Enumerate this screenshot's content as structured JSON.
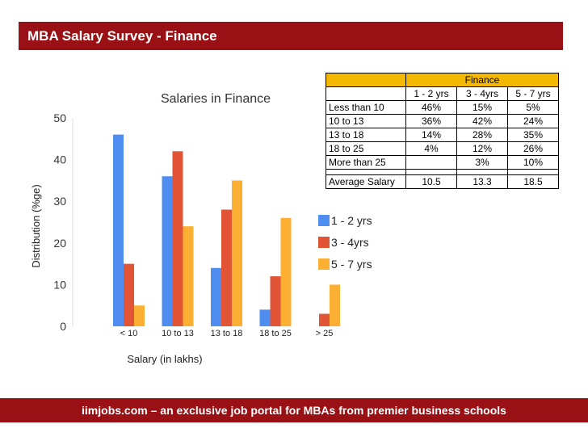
{
  "header": {
    "title": "MBA Salary Survey - Finance"
  },
  "footer": {
    "text": "iimjobs.com – an exclusive job portal for MBAs from premier business schools"
  },
  "chart_data": {
    "type": "bar",
    "title": "Salaries in Finance",
    "xlabel": "Salary (in lakhs)",
    "ylabel": "Distribution (%ge)",
    "ylim": [
      0,
      50
    ],
    "yticks": [
      0,
      10,
      20,
      30,
      40,
      50
    ],
    "categories": [
      "< 10",
      "10 to 13",
      "13 to 18",
      "18 to 25",
      "> 25"
    ],
    "series": [
      {
        "name": "1 - 2 yrs",
        "color": "#4f8ef0",
        "values": [
          46,
          36,
          14,
          4,
          0
        ]
      },
      {
        "name": "3 - 4yrs",
        "color": "#e15435",
        "values": [
          15,
          42,
          28,
          12,
          3
        ]
      },
      {
        "name": "5 - 7 yrs",
        "color": "#fbb034",
        "values": [
          5,
          24,
          35,
          26,
          10
        ]
      }
    ],
    "grid": false,
    "legend": "right"
  },
  "table": {
    "title": "Finance",
    "columns": [
      "1 - 2 yrs",
      "3 - 4yrs",
      "5 - 7 yrs"
    ],
    "rows": [
      {
        "label": "Less than 10",
        "values": [
          "46%",
          "15%",
          "5%"
        ]
      },
      {
        "label": "10 to 13",
        "values": [
          "36%",
          "42%",
          "24%"
        ]
      },
      {
        "label": "13 to 18",
        "values": [
          "14%",
          "28%",
          "35%"
        ]
      },
      {
        "label": "18 to 25",
        "values": [
          "4%",
          "12%",
          "26%"
        ]
      },
      {
        "label": "More than 25",
        "values": [
          "",
          "3%",
          "10%"
        ]
      }
    ],
    "average": {
      "label": "Average Salary",
      "values": [
        "10.5",
        "13.3",
        "18.5"
      ]
    }
  }
}
